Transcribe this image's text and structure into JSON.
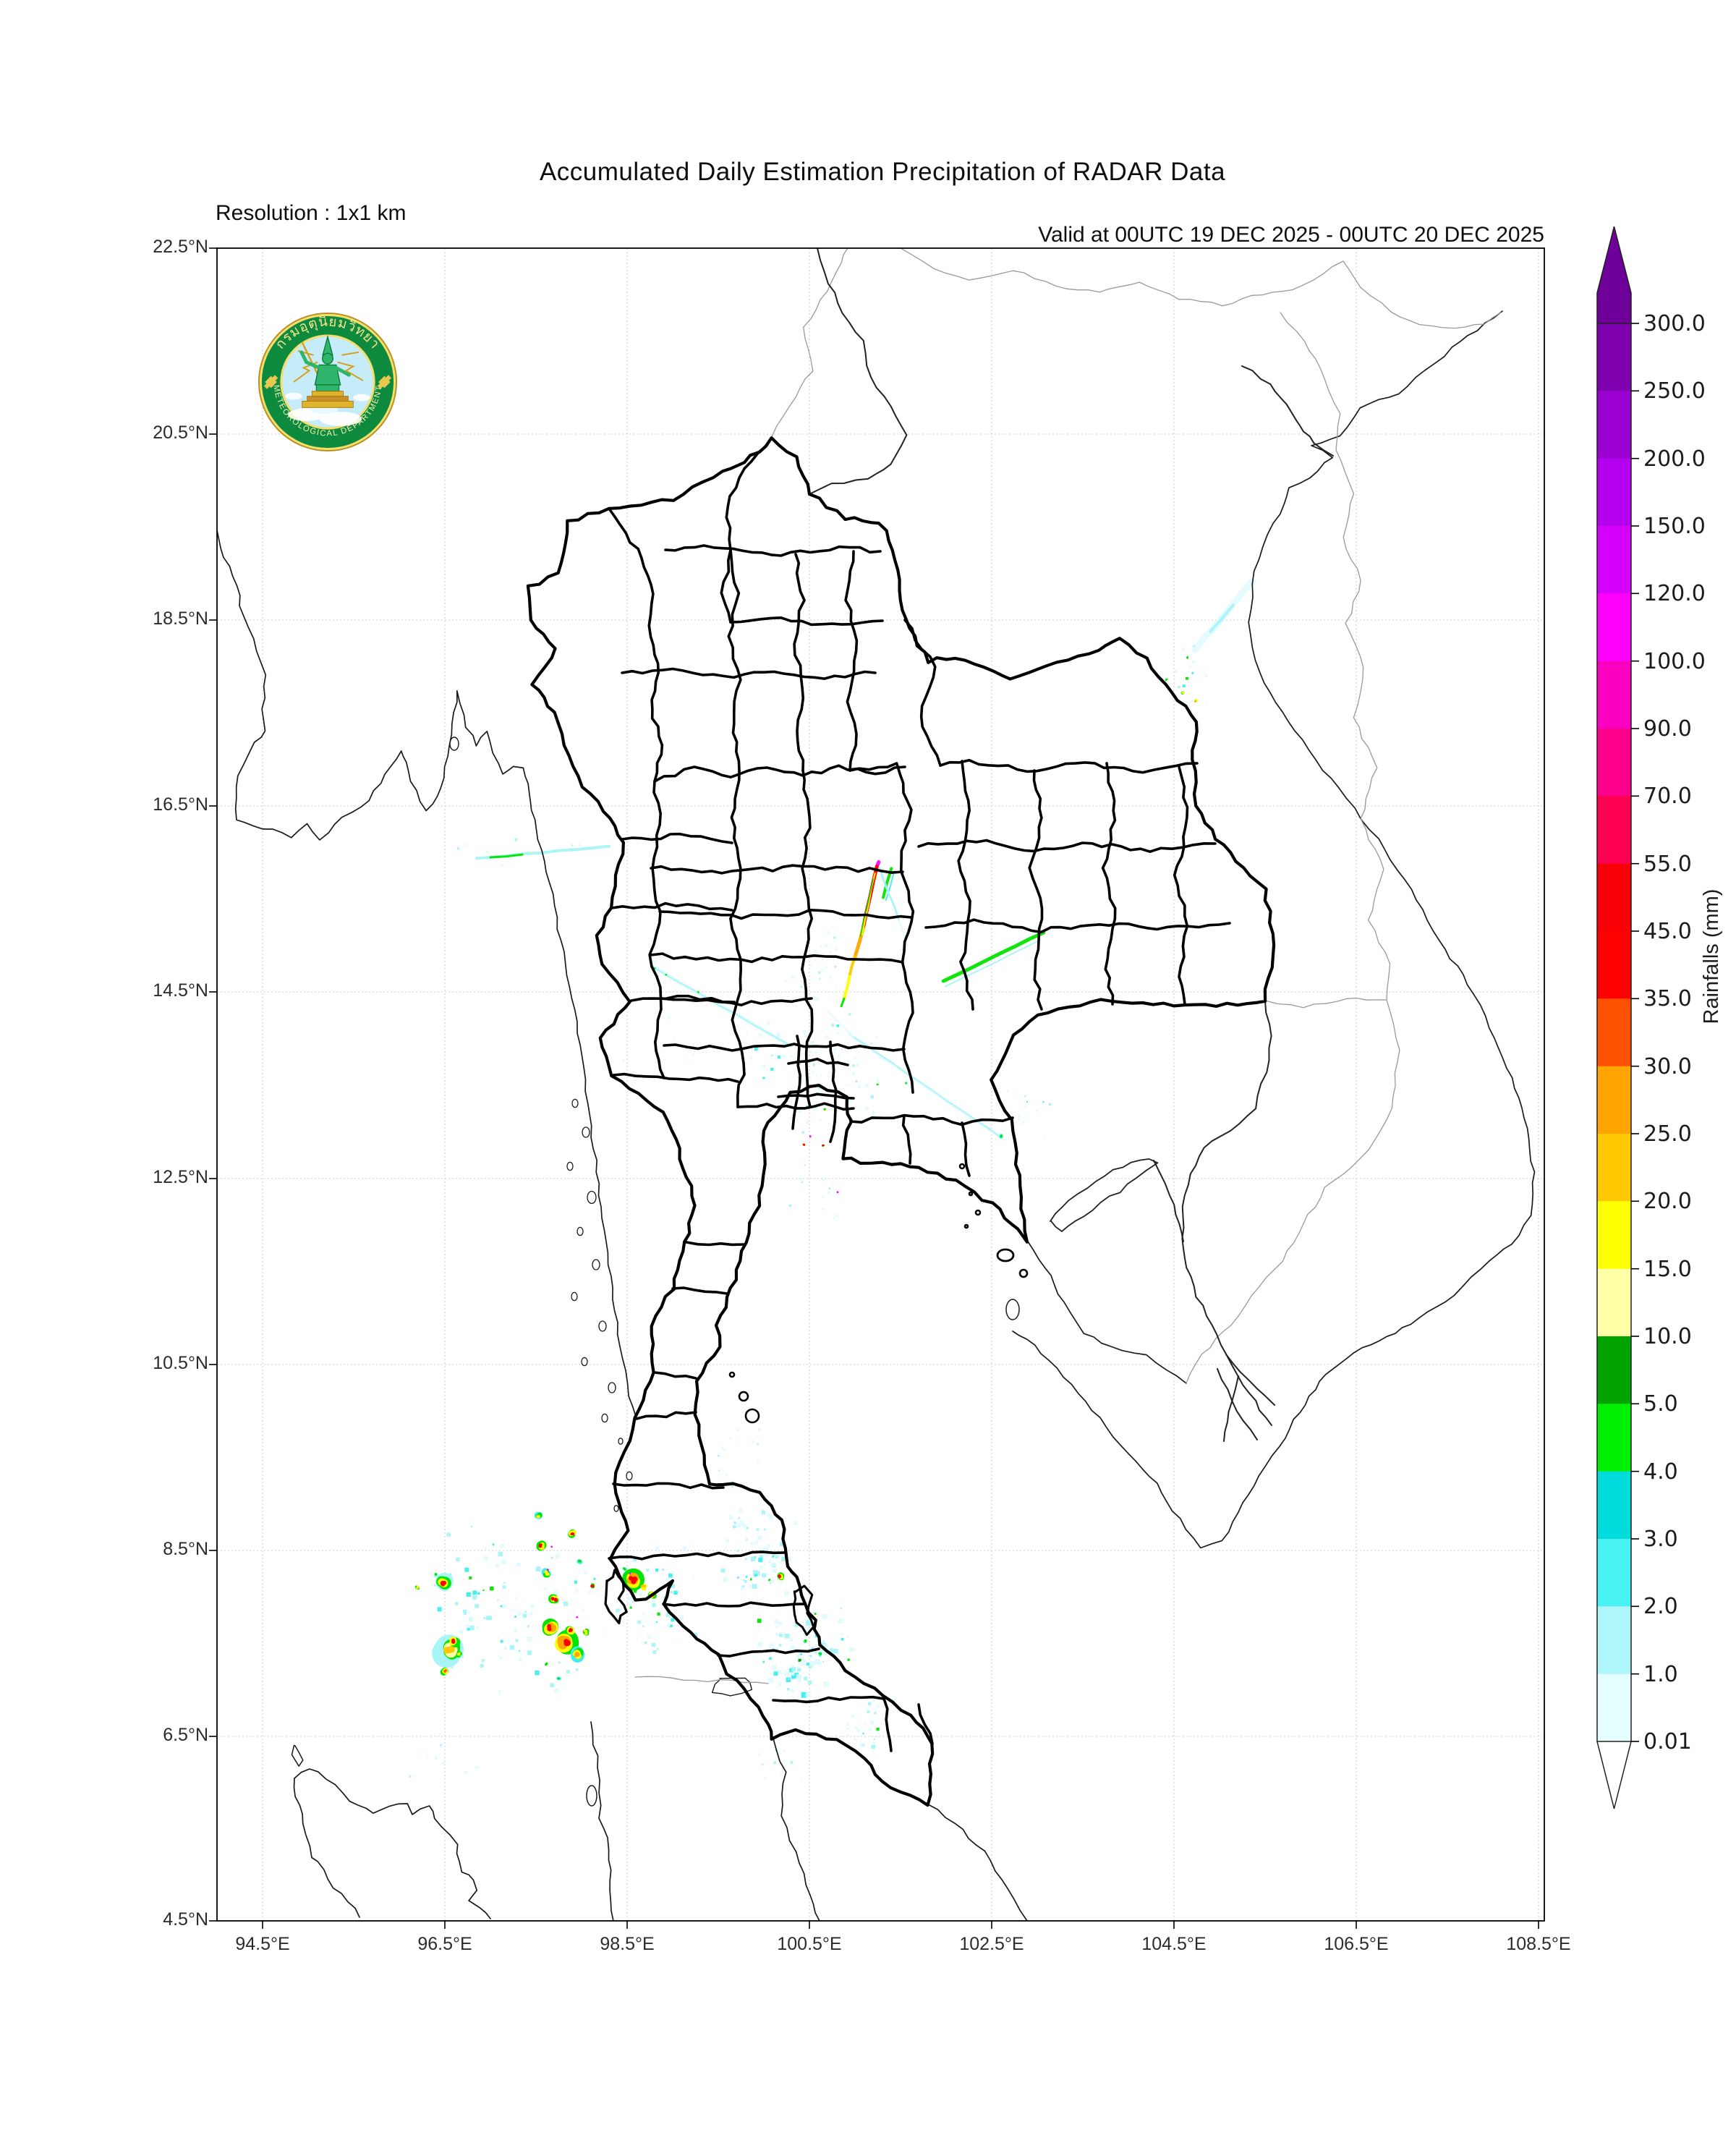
{
  "header": {
    "title": "Accumulated Daily Estimation Precipitation of RADAR Data",
    "resolution": "Resolution : 1x1 km",
    "valid": "Valid at 00UTC 19 DEC 2025 - 00UTC 20 DEC 2025"
  },
  "logo": {
    "thai_text": "กรมอุตุนิยมวิทยา",
    "english_text": "METEOROLOGICAL  DEPARTMENT",
    "band_color": "#0E8A3E",
    "gold_color": "#D9B13B",
    "sky_color": "#C7ECF9"
  },
  "axes": {
    "lat_ticks": [
      "22.5°N",
      "20.5°N",
      "18.5°N",
      "16.5°N",
      "14.5°N",
      "12.5°N",
      "10.5°N",
      "8.5°N",
      "6.5°N",
      "4.5°N"
    ],
    "lon_ticks": [
      "94.5°E",
      "96.5°E",
      "98.5°E",
      "100.5°E",
      "102.5°E",
      "104.5°E",
      "106.5°E",
      "108.5°E"
    ]
  },
  "map": {
    "frame_color": "#000000",
    "grid_color": "#cccccc",
    "province_color": "#000000",
    "coast_color": "#1a1a1a",
    "border_color": "#999999",
    "river_color": "#222222"
  },
  "colorbar": {
    "label": "Rainfalls (mm)",
    "tick_labels": [
      "300.0",
      "250.0",
      "200.0",
      "150.0",
      "120.0",
      "100.0",
      "90.0",
      "70.0",
      "55.0",
      "45.0",
      "35.0",
      "30.0",
      "25.0",
      "20.0",
      "15.0",
      "10.0",
      "5.0",
      "4.0",
      "3.0",
      "2.0",
      "1.0",
      "0.01"
    ],
    "segment_colors_top_to_bottom": [
      "#7F00AF",
      "#9B00D3",
      "#B500EF",
      "#D400FB",
      "#FF00FF",
      "#FB00C0",
      "#FF008C",
      "#FF0051",
      "#F90008",
      "#FF0000",
      "#FF5200",
      "#FFA400",
      "#FFC800",
      "#FFFF00",
      "#FFFFA8",
      "#00A300",
      "#00EE00",
      "#00DCDC",
      "#49F2F2",
      "#AEF6F9",
      "#E4FDFE"
    ],
    "arrow_top_color": "#6E0099",
    "arrow_bottom_color": "#FFFFFF"
  },
  "chart_data": {
    "type": "heatmap",
    "title": "Accumulated Daily Estimation Precipitation of RADAR Data",
    "units": "mm",
    "levels": [
      0.01,
      1.0,
      2.0,
      3.0,
      4.0,
      5.0,
      10.0,
      15.0,
      20.0,
      25.0,
      30.0,
      35.0,
      45.0,
      55.0,
      70.0,
      90.0,
      100.0,
      120.0,
      150.0,
      200.0,
      250.0,
      300.0
    ],
    "lon_range": [
      94.0,
      108.56
    ],
    "lat_range": [
      4.4,
      22.5
    ]
  },
  "precipitation": {
    "palette": {
      "c0": "#DCFAFC",
      "c1": "#A8F4F7",
      "c2": "#3FEDED",
      "c3": "#00DCDC",
      "g1": "#00E400",
      "g2": "#00A300",
      "y0": "#FFFFA8",
      "y1": "#FFFF00",
      "a1": "#FFC800",
      "o1": "#FFA400",
      "o2": "#FF5200",
      "r1": "#FF0000",
      "p1": "#FF00FF"
    },
    "cells": [
      [
        96.2,
        8.1,
        5,
        [
          "g1",
          "y1"
        ]
      ],
      [
        96.48,
        8.15,
        11,
        [
          "c1",
          "g1",
          "y1",
          "r1"
        ]
      ],
      [
        96.4,
        8.24,
        6,
        [
          "c1",
          "g1"
        ]
      ],
      [
        96.55,
        7.42,
        17,
        [
          "c1",
          "g1",
          "y0",
          "a1"
        ]
      ],
      [
        96.6,
        7.52,
        9,
        [
          "g1",
          "y1",
          "r1"
        ]
      ],
      [
        96.5,
        7.2,
        7,
        [
          "g1",
          "y1",
          "o2"
        ]
      ],
      [
        96.66,
        7.38,
        6,
        [
          "g1",
          "y1"
        ]
      ],
      [
        97.53,
        8.87,
        7,
        [
          "c2",
          "g1",
          "y1"
        ]
      ],
      [
        97.56,
        8.55,
        8,
        [
          "g1",
          "y1",
          "r1"
        ]
      ],
      [
        97.62,
        8.25,
        8,
        [
          "c2",
          "g1",
          "y1"
        ]
      ],
      [
        97.7,
        7.97,
        9,
        [
          "g1",
          "y1",
          "r1"
        ]
      ],
      [
        97.66,
        7.67,
        11,
        [
          "g1",
          "y1",
          "o1",
          "r1"
        ]
      ],
      [
        97.82,
        7.5,
        16,
        [
          "g1",
          "y1",
          "o1",
          "r1"
        ]
      ],
      [
        97.88,
        7.63,
        9,
        [
          "g1",
          "y1",
          "r1"
        ]
      ],
      [
        97.95,
        7.38,
        10,
        [
          "c2",
          "g1",
          "y1",
          "o1"
        ]
      ],
      [
        98.05,
        7.62,
        8,
        [
          "g1",
          "y1"
        ]
      ],
      [
        98.12,
        8.12,
        6,
        [
          "g1",
          "r1"
        ]
      ],
      [
        97.98,
        8.38,
        6,
        [
          "c2",
          "g1"
        ]
      ],
      [
        97.9,
        8.68,
        7,
        [
          "g1",
          "y1",
          "r1"
        ]
      ],
      [
        97.62,
        7.27,
        6,
        [
          "g1"
        ]
      ],
      [
        97.75,
        7.12,
        5,
        [
          "c2",
          "g1"
        ]
      ],
      [
        98.56,
        8.18,
        13,
        [
          "g1",
          "y1",
          "o1",
          "r1"
        ]
      ],
      [
        98.68,
        8.1,
        8,
        [
          "y1",
          "a1"
        ]
      ],
      [
        98.78,
        8.02,
        7,
        [
          "g1",
          "y1",
          "o1"
        ]
      ],
      [
        98.47,
        8.3,
        5,
        [
          "c2",
          "g1"
        ]
      ],
      [
        100.18,
        8.22,
        7,
        [
          "g1",
          "y1",
          "r1"
        ]
      ],
      [
        100.06,
        8.18,
        4,
        [
          "g1"
        ]
      ],
      [
        100.45,
        7.52,
        5,
        [
          "c2",
          "g1"
        ]
      ],
      [
        100.62,
        7.38,
        5,
        [
          "c2",
          "g1"
        ]
      ],
      [
        102.6,
        12.95,
        5,
        [
          "c2",
          "g1"
        ]
      ],
      [
        104.65,
        18.1,
        4,
        [
          "g1"
        ]
      ],
      [
        104.42,
        17.86,
        4,
        [
          "g1"
        ]
      ],
      [
        104.6,
        17.72,
        4,
        [
          "g1",
          "y1"
        ]
      ],
      [
        104.74,
        17.63,
        4,
        [
          "y1",
          "o1"
        ]
      ],
      [
        100.81,
        12.35,
        3,
        [
          "p1"
        ]
      ],
      [
        97.67,
        8.54,
        2,
        [
          "p1"
        ]
      ],
      [
        97.63,
        8.29,
        2,
        [
          "p1"
        ]
      ],
      [
        97.95,
        7.78,
        2,
        [
          "p1"
        ]
      ],
      [
        98.53,
        8.25,
        2,
        [
          "p1"
        ]
      ],
      [
        100.44,
        12.86,
        3,
        [
          "y1",
          "r1"
        ]
      ],
      [
        100.65,
        12.85,
        3,
        [
          "g1",
          "r1"
        ]
      ],
      [
        100.51,
        12.95,
        2,
        [
          "p1"
        ]
      ],
      [
        100.67,
        13.24,
        3,
        [
          "y1",
          "g1"
        ]
      ],
      [
        101.25,
        13.51,
        3,
        [
          "g1"
        ]
      ],
      [
        101.56,
        13.52,
        3,
        [
          "g1"
        ]
      ],
      [
        98.8,
        14.76,
        3,
        [
          "g1"
        ]
      ],
      [
        98.93,
        14.69,
        2,
        [
          "g1"
        ]
      ],
      [
        99.28,
        14.5,
        2,
        [
          "g1"
        ]
      ]
    ],
    "streaks": [
      {
        "f": [
          101.26,
          15.9
        ],
        "t": [
          101.24,
          15.85
        ],
        "w": 5,
        "c": "p1"
      },
      {
        "f": [
          101.24,
          15.85
        ],
        "t": [
          101.09,
          15.19
        ],
        "w": 5,
        "c": "r1"
      },
      {
        "f": [
          101.09,
          15.19
        ],
        "t": [
          101.0,
          14.88
        ],
        "w": 5,
        "c": "o1"
      },
      {
        "f": [
          101.0,
          14.88
        ],
        "t": [
          100.94,
          14.67
        ],
        "w": 4,
        "c": "a1"
      },
      {
        "f": [
          100.94,
          14.67
        ],
        "t": [
          100.88,
          14.43
        ],
        "w": 4,
        "c": "y1"
      },
      {
        "f": [
          100.88,
          14.43
        ],
        "t": [
          100.85,
          14.35
        ],
        "w": 3,
        "c": "g1"
      },
      {
        "f": [
          101.22,
          15.78
        ],
        "t": [
          101.08,
          15.12
        ],
        "w": 2,
        "c": "y1"
      },
      {
        "f": [
          101.2,
          15.72
        ],
        "t": [
          101.06,
          15.1
        ],
        "w": 1.5,
        "c": "g1"
      },
      {
        "f": [
          101.4,
          15.83
        ],
        "t": [
          101.31,
          15.52
        ],
        "w": 4,
        "c": "g1"
      },
      {
        "f": [
          101.43,
          15.8
        ],
        "t": [
          101.34,
          15.49
        ],
        "w": 2,
        "c": "c2"
      },
      {
        "f": [
          101.27,
          15.84
        ],
        "t": [
          101.48,
          15.28
        ],
        "w": 3,
        "c": "c1"
      },
      {
        "f": [
          101.48,
          15.28
        ],
        "t": [
          101.58,
          15.0
        ],
        "w": 2,
        "c": "c0"
      },
      {
        "f": [
          101.97,
          14.62
        ],
        "t": [
          103.07,
          15.14
        ],
        "w": 5,
        "c": "g1"
      },
      {
        "f": [
          101.99,
          14.56
        ],
        "t": [
          103.03,
          15.06
        ],
        "w": 2,
        "c": "c1"
      },
      {
        "f": [
          98.77,
          14.78
        ],
        "t": [
          100.3,
          13.92
        ],
        "w": 5,
        "c": "c0"
      },
      {
        "f": [
          98.77,
          14.78
        ],
        "t": [
          100.3,
          13.92
        ],
        "w": 2,
        "c": "c1"
      },
      {
        "f": [
          100.93,
          14.05
        ],
        "t": [
          102.63,
          12.92
        ],
        "w": 4,
        "c": "c0"
      },
      {
        "f": [
          100.98,
          14.02
        ],
        "t": [
          102.6,
          12.94
        ],
        "w": 2,
        "c": "c1"
      },
      {
        "f": [
          96.85,
          15.94
        ],
        "t": [
          98.3,
          16.07
        ],
        "w": 4,
        "c": "c1"
      },
      {
        "f": [
          97.0,
          15.95
        ],
        "t": [
          97.35,
          15.98
        ],
        "w": 3,
        "c": "g1"
      },
      {
        "f": [
          104.73,
          18.18
        ],
        "t": [
          105.36,
          18.92
        ],
        "w": 9,
        "c": "c0"
      },
      {
        "f": [
          104.9,
          18.38
        ],
        "t": [
          105.15,
          18.66
        ],
        "w": 4,
        "c": "c1"
      },
      {
        "f": [
          100.7,
          14.3
        ],
        "t": [
          100.98,
          14.02
        ],
        "w": 2,
        "c": "c0"
      }
    ],
    "clusters": [
      [
        96.1,
        6.8,
        98.3,
        8.9,
        90,
        2,
        7,
        {
          "c0": 0.5,
          "c1": 0.32,
          "c2": 0.14,
          "g1": 0.04
        },
        11
      ],
      [
        98.3,
        7.3,
        99.3,
        8.6,
        55,
        2,
        6,
        {
          "c0": 0.5,
          "c1": 0.32,
          "c2": 0.14,
          "g1": 0.04
        },
        12
      ],
      [
        99.5,
        7.9,
        100.4,
        9.0,
        75,
        2,
        7,
        {
          "c0": 0.55,
          "c1": 0.33,
          "c2": 0.1,
          "g1": 0.02
        },
        13
      ],
      [
        99.9,
        6.9,
        101.0,
        7.9,
        95,
        2,
        8,
        {
          "c0": 0.5,
          "c1": 0.3,
          "c2": 0.14,
          "g1": 0.05,
          "g2": 0.01
        },
        14
      ],
      [
        100.8,
        6.2,
        101.5,
        7.15,
        30,
        2,
        6,
        {
          "c0": 0.6,
          "c1": 0.3,
          "c2": 0.08,
          "g1": 0.02
        },
        15
      ],
      [
        99.8,
        12.9,
        101.4,
        14.6,
        85,
        2,
        5,
        {
          "c0": 0.72,
          "c1": 0.22,
          "c2": 0.06
        },
        16
      ],
      [
        100.2,
        14.3,
        101.05,
        15.3,
        25,
        2,
        4,
        {
          "c0": 0.8,
          "c1": 0.2
        },
        17
      ],
      [
        104.3,
        17.4,
        105.0,
        18.3,
        16,
        2,
        4,
        {
          "c0": 0.5,
          "c1": 0.3,
          "c2": 0.1,
          "g1": 0.1
        },
        18
      ],
      [
        102.5,
        12.9,
        103.4,
        13.5,
        12,
        2,
        4,
        {
          "c0": 0.5,
          "c1": 0.35,
          "c2": 0.15
        },
        19
      ],
      [
        96.3,
        15.8,
        98.4,
        16.25,
        10,
        2,
        4,
        {
          "c0": 0.7,
          "c1": 0.3
        },
        20
      ],
      [
        99.2,
        8.9,
        100.1,
        10.3,
        15,
        2,
        4,
        {
          "c0": 0.7,
          "c1": 0.3
        },
        21
      ],
      [
        98.2,
        13.3,
        99.7,
        14.9,
        12,
        2,
        4,
        {
          "c0": 0.85,
          "c1": 0.15
        },
        22
      ],
      [
        100.2,
        12.0,
        101.1,
        12.85,
        12,
        2,
        4,
        {
          "c0": 0.7,
          "c1": 0.3
        },
        23
      ],
      [
        95.9,
        5.9,
        97.0,
        6.6,
        8,
        2,
        4,
        {
          "c0": 0.7,
          "c1": 0.3
        },
        24
      ],
      [
        99.6,
        5.9,
        100.6,
        6.5,
        10,
        2,
        4,
        {
          "c0": 0.7,
          "c1": 0.3
        },
        25
      ]
    ]
  }
}
